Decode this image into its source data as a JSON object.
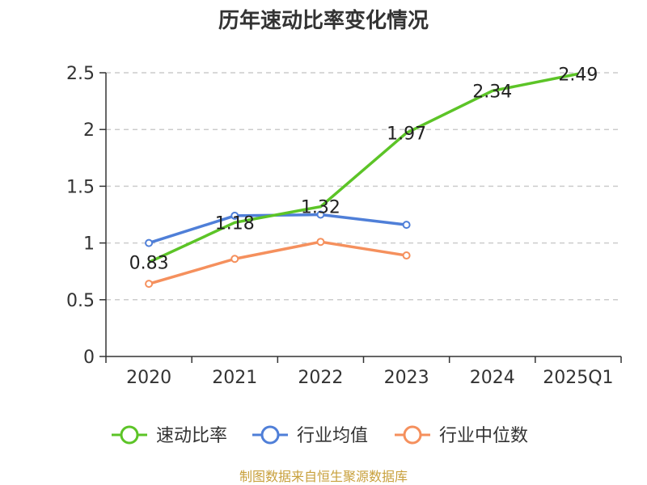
{
  "chart_data": {
    "type": "line",
    "title": "历年速动比率变化情况",
    "categories": [
      "2020",
      "2021",
      "2022",
      "2023",
      "2024",
      "2025Q1"
    ],
    "y_ticks": [
      "0",
      "0.5",
      "1",
      "1.5",
      "2",
      "2.5"
    ],
    "ylim": [
      0,
      2.5
    ],
    "grid": "horizontal-dashed",
    "legend_position": "bottom",
    "series": [
      {
        "name": "速动比率",
        "color": "#5cc427",
        "values": [
          0.83,
          1.18,
          1.32,
          1.97,
          2.34,
          2.49
        ],
        "labels": [
          "0.83",
          "1.18",
          "1.32",
          "1.97",
          "2.34",
          "2.49"
        ],
        "show_markers": false
      },
      {
        "name": "行业均值",
        "color": "#4f7fd8",
        "values": [
          1.0,
          1.24,
          1.25,
          1.16,
          null,
          null
        ],
        "show_markers": true
      },
      {
        "name": "行业中位数",
        "color": "#f5905d",
        "values": [
          0.64,
          0.86,
          1.01,
          0.89,
          null,
          null
        ],
        "show_markers": true
      }
    ]
  },
  "source_text": "制图数据来自恒生聚源数据库",
  "source_color": "#c8a03c"
}
